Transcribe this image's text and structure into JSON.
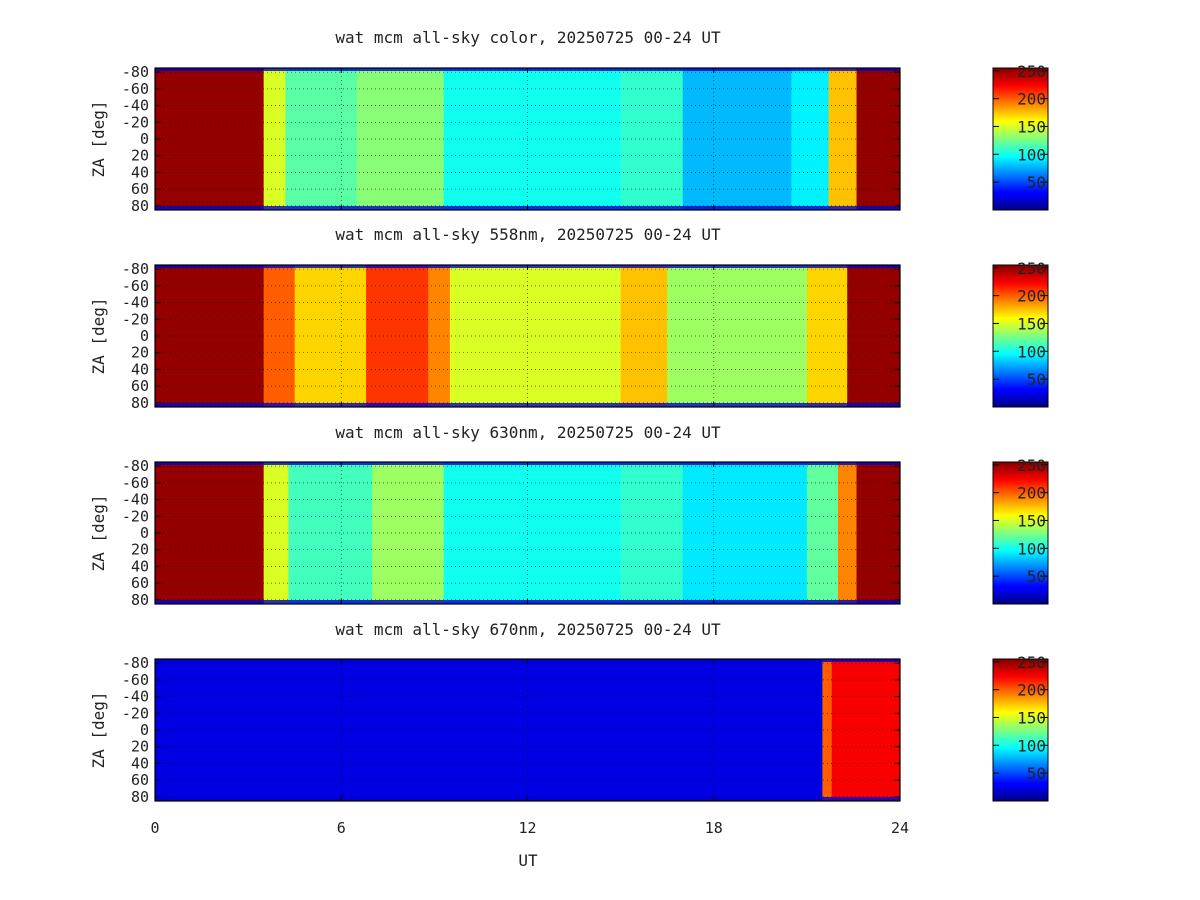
{
  "chart_data": [
    {
      "type": "heatmap",
      "title": "wat mcm all-sky color, 20250725 00-24 UT",
      "ylabel": "ZA [deg]",
      "y_ticks": [
        "-80",
        "-60",
        "-40",
        "-20",
        "0",
        "20",
        "40",
        "60",
        "80"
      ],
      "xlim": [
        0,
        24
      ],
      "ylim": [
        -85,
        85
      ],
      "colorbar": {
        "range": [
          0,
          255
        ],
        "ticks": [
          "250",
          "200",
          "150",
          "100",
          "50"
        ]
      },
      "segments": [
        {
          "ut_start": 0.0,
          "ut_end": 3.5,
          "level": 250
        },
        {
          "ut_start": 3.5,
          "ut_end": 4.2,
          "level": 150
        },
        {
          "ut_start": 4.2,
          "ut_end": 6.5,
          "level": 118
        },
        {
          "ut_start": 6.5,
          "ut_end": 9.3,
          "level": 130
        },
        {
          "ut_start": 9.3,
          "ut_end": 15.0,
          "level": 100
        },
        {
          "ut_start": 15.0,
          "ut_end": 17.0,
          "level": 108
        },
        {
          "ut_start": 17.0,
          "ut_end": 20.5,
          "level": 78
        },
        {
          "ut_start": 20.5,
          "ut_end": 21.7,
          "level": 92
        },
        {
          "ut_start": 21.7,
          "ut_end": 22.6,
          "level": 175
        },
        {
          "ut_start": 22.6,
          "ut_end": 24.0,
          "level": 250
        }
      ]
    },
    {
      "type": "heatmap",
      "title": "wat mcm all-sky 558nm, 20250725 00-24 UT",
      "ylabel": "ZA [deg]",
      "y_ticks": [
        "-80",
        "-60",
        "-40",
        "-20",
        "0",
        "20",
        "40",
        "60",
        "80"
      ],
      "xlim": [
        0,
        24
      ],
      "ylim": [
        -85,
        85
      ],
      "colorbar": {
        "range": [
          0,
          255
        ],
        "ticks": [
          "250",
          "200",
          "150",
          "100",
          "50"
        ]
      },
      "segments": [
        {
          "ut_start": 0.0,
          "ut_end": 3.5,
          "level": 250
        },
        {
          "ut_start": 3.5,
          "ut_end": 4.5,
          "level": 200
        },
        {
          "ut_start": 4.5,
          "ut_end": 6.8,
          "level": 170
        },
        {
          "ut_start": 6.8,
          "ut_end": 8.8,
          "level": 210
        },
        {
          "ut_start": 8.8,
          "ut_end": 9.5,
          "level": 190
        },
        {
          "ut_start": 9.5,
          "ut_end": 15.0,
          "level": 150
        },
        {
          "ut_start": 15.0,
          "ut_end": 16.5,
          "level": 175
        },
        {
          "ut_start": 16.5,
          "ut_end": 21.0,
          "level": 135
        },
        {
          "ut_start": 21.0,
          "ut_end": 22.3,
          "level": 170
        },
        {
          "ut_start": 22.3,
          "ut_end": 24.0,
          "level": 250
        }
      ]
    },
    {
      "type": "heatmap",
      "title": "wat mcm all-sky 630nm, 20250725 00-24 UT",
      "ylabel": "ZA [deg]",
      "y_ticks": [
        "-80",
        "-60",
        "-40",
        "-20",
        "0",
        "20",
        "40",
        "60",
        "80"
      ],
      "xlim": [
        0,
        24
      ],
      "ylim": [
        -85,
        85
      ],
      "colorbar": {
        "range": [
          0,
          255
        ],
        "ticks": [
          "250",
          "200",
          "150",
          "100",
          "50"
        ]
      },
      "segments": [
        {
          "ut_start": 0.0,
          "ut_end": 3.5,
          "level": 250
        },
        {
          "ut_start": 3.5,
          "ut_end": 4.3,
          "level": 150
        },
        {
          "ut_start": 4.3,
          "ut_end": 7.0,
          "level": 112
        },
        {
          "ut_start": 7.0,
          "ut_end": 9.3,
          "level": 135
        },
        {
          "ut_start": 9.3,
          "ut_end": 15.0,
          "level": 100
        },
        {
          "ut_start": 15.0,
          "ut_end": 17.0,
          "level": 108
        },
        {
          "ut_start": 17.0,
          "ut_end": 21.0,
          "level": 90
        },
        {
          "ut_start": 21.0,
          "ut_end": 22.0,
          "level": 120
        },
        {
          "ut_start": 22.0,
          "ut_end": 22.6,
          "level": 190
        },
        {
          "ut_start": 22.6,
          "ut_end": 24.0,
          "level": 250
        }
      ]
    },
    {
      "type": "heatmap",
      "title": "wat mcm all-sky 670nm, 20250725 00-24 UT",
      "ylabel": "ZA [deg]",
      "y_ticks": [
        "-80",
        "-60",
        "-40",
        "-20",
        "0",
        "20",
        "40",
        "60",
        "80"
      ],
      "xlim": [
        0,
        24
      ],
      "ylim": [
        -85,
        85
      ],
      "colorbar": {
        "range": [
          0,
          255
        ],
        "ticks": [
          "250",
          "200",
          "150",
          "100",
          "50"
        ]
      },
      "segments": [
        {
          "ut_start": 0.0,
          "ut_end": 21.5,
          "level": 25
        },
        {
          "ut_start": 21.5,
          "ut_end": 21.8,
          "level": 200
        },
        {
          "ut_start": 21.8,
          "ut_end": 24.0,
          "level": 225
        }
      ]
    }
  ],
  "x_axis": {
    "label": "UT",
    "ticks": [
      "0",
      "6",
      "12",
      "18",
      "24"
    ]
  }
}
